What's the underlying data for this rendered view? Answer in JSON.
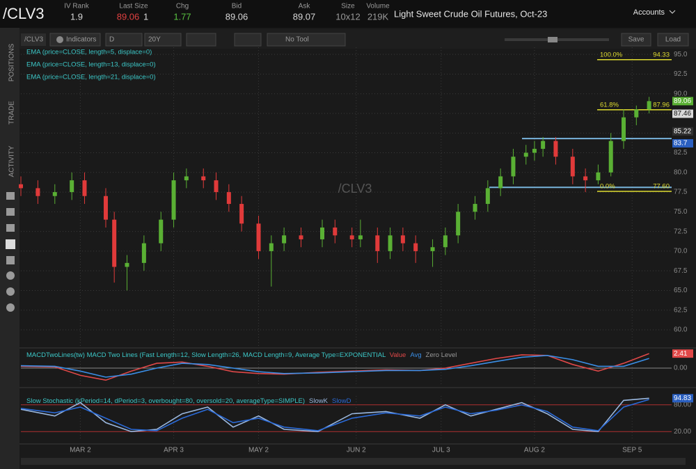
{
  "header": {
    "symbol": "/CLV3",
    "fields": [
      {
        "label": "IV Rank",
        "value": 1.9,
        "color": "#d8d8d8"
      },
      {
        "label": "Last Size",
        "value": 89.06,
        "color": "#e04040",
        "extra": 1
      },
      {
        "label": "Chg",
        "value": 1.77,
        "color": "#58c040"
      },
      {
        "label": "Bid",
        "value": 89.06,
        "color": "#d8d8d8"
      },
      {
        "label": "Ask",
        "value": 89.07,
        "color": "#d8d8d8"
      },
      {
        "label": "Size",
        "value": "10x12",
        "color": "#9a9a9a"
      },
      {
        "label": "Volume",
        "value": "219K",
        "color": "#9a9a9a"
      }
    ],
    "description": "Light Sweet Crude Oil Futures, Oct-23",
    "accounts": "Accounts"
  },
  "toolbar": {
    "symbol": "/CLV3",
    "indicators": "Indicators",
    "aggregation": "D",
    "period": "20Y",
    "tool": "No Tool",
    "save": "Save",
    "load": "Load"
  },
  "sidebar": [
    "POSITIONS",
    "TRADE",
    "ACTIVITY"
  ],
  "chart_data": [
    {
      "type": "candlestick",
      "watermark": "/CLV3",
      "annotations": [
        "EMA (price=CLOSE, length=5, displace=0)",
        "EMA (price=CLOSE, length=13, displace=0)",
        "EMA (price=CLOSE, length=21, displace=0)"
      ],
      "x": [
        0,
        4,
        8,
        12,
        15,
        20,
        22,
        25,
        29,
        33,
        36,
        39,
        43,
        46,
        49,
        52,
        56,
        59,
        62,
        66,
        71,
        74,
        78,
        80,
        84,
        87,
        90,
        93,
        97,
        100,
        103,
        107,
        110,
        113,
        116,
        119,
        121,
        123,
        126,
        130,
        133,
        136,
        139,
        142,
        145,
        148
      ],
      "open": [
        78.5,
        78,
        77,
        77.5,
        79,
        77,
        74,
        68,
        68.5,
        71,
        74,
        79,
        79.5,
        79,
        77.5,
        76,
        73.5,
        70,
        71,
        72,
        71.5,
        73,
        72,
        71.5,
        72,
        70,
        72,
        71,
        70,
        70.5,
        72,
        75,
        76,
        78,
        79.5,
        82,
        82.5,
        83,
        84,
        82,
        79.5,
        79,
        80,
        84,
        87,
        88
      ],
      "high": [
        79.5,
        79,
        78.5,
        80,
        80,
        78,
        75,
        69.5,
        72,
        75,
        80,
        80.5,
        80.5,
        80,
        78.5,
        77,
        74.5,
        72,
        73,
        73,
        74,
        74,
        73,
        74,
        73,
        73,
        73,
        72,
        71.5,
        73,
        76,
        77,
        79,
        80.5,
        83,
        83.5,
        84,
        84.5,
        84.5,
        83,
        80.5,
        81,
        85,
        88,
        88.5,
        89.6
      ],
      "low": [
        77,
        76,
        76,
        76.5,
        76,
        73,
        66,
        65,
        67.5,
        70,
        73,
        78,
        78,
        76.5,
        75,
        72.5,
        69,
        65.5,
        70,
        70.5,
        70.5,
        71,
        70.5,
        70.5,
        68.5,
        69,
        70,
        68.5,
        68,
        69.5,
        71,
        74,
        75,
        77,
        78.5,
        81,
        81.5,
        82,
        81,
        78.5,
        77.5,
        78.5,
        79.5,
        83,
        86,
        87.5
      ],
      "close": [
        78,
        77,
        77.5,
        79,
        77,
        74,
        68,
        68.5,
        71,
        74,
        79,
        79.5,
        79,
        77.5,
        76,
        73.5,
        70,
        71,
        72,
        71.5,
        73,
        72,
        71.5,
        72,
        70,
        72,
        71,
        70,
        70.5,
        72,
        75,
        76,
        78,
        79.5,
        82,
        82.5,
        83,
        84,
        82,
        79.5,
        79,
        80,
        84,
        87,
        88,
        89.06
      ],
      "up_color": "#5ab034",
      "down_color": "#e03a3a",
      "xlim": [
        0,
        152
      ],
      "xticks": [
        {
          "value": 14,
          "label": "MAR 2"
        },
        {
          "value": 36,
          "label": "APR 3"
        },
        {
          "value": 56,
          "label": "MAY 2"
        },
        {
          "value": 79,
          "label": "JUN 2"
        },
        {
          "value": 99,
          "label": "JUL 3"
        },
        {
          "value": 121,
          "label": "AUG 2"
        },
        {
          "value": 144,
          "label": "SEP 5"
        }
      ],
      "ylim": [
        57.7,
        95.9
      ],
      "yticks": [
        {
          "value": 60,
          "label": "60.0"
        },
        {
          "value": 62.5,
          "label": "62.5"
        },
        {
          "value": 65,
          "label": "65.0"
        },
        {
          "value": 67.5,
          "label": "67.5"
        },
        {
          "value": 70,
          "label": "70.0"
        },
        {
          "value": 72.5,
          "label": "72.5"
        },
        {
          "value": 75,
          "label": "75.0"
        },
        {
          "value": 77.5,
          "label": "77.5"
        },
        {
          "value": 80,
          "label": "80.0"
        },
        {
          "value": 82.5,
          "label": "82.5"
        },
        {
          "value": 85,
          "label": "85.0"
        },
        {
          "value": 87.5,
          "label": "87.5"
        },
        {
          "value": 90,
          "label": "90.0"
        },
        {
          "value": 92.5,
          "label": "92.5"
        },
        {
          "value": 95,
          "label": "95.0"
        }
      ],
      "grid": true,
      "fib_levels": [
        {
          "name": "100.0%",
          "value": 94.33,
          "label": "94.33"
        },
        {
          "name": "61.8%",
          "value": 87.96,
          "label": "87.96"
        },
        {
          "name": "0.0%",
          "value": 77.6,
          "label": "77.60"
        }
      ],
      "fib_color": "#e0dc30",
      "levels": [
        84.3,
        78.1
      ],
      "level_color": "#78b4dc",
      "markers": [
        {
          "value": 89.06,
          "label": "89.06",
          "color": "#5ab034"
        },
        {
          "value": 87.46,
          "label": "87.46",
          "color": "#d8d8d8"
        },
        {
          "value": 85.22,
          "label": "85.22",
          "color": "#303030"
        },
        {
          "value": 83.7,
          "label": "83.7",
          "color": "#2a5fc0"
        }
      ]
    },
    {
      "type": "line",
      "title": "MACDTwoLines(tw) MACD Two Lines (Fast Length=12, Slow Length=26, MACD Length=9, Average Type=EXPONENTIAL",
      "extra_legend": "Zero Level",
      "x": [
        0,
        8,
        14,
        20,
        26,
        32,
        38,
        44,
        50,
        56,
        62,
        70,
        78,
        86,
        94,
        100,
        106,
        112,
        118,
        124,
        130,
        136,
        142,
        148
      ],
      "series": [
        {
          "name": "Value",
          "color": "#e04848",
          "values": [
            0.3,
            0.2,
            -1.2,
            -2.0,
            -0.5,
            0.8,
            1.0,
            0.3,
            -0.6,
            -0.9,
            -1.0,
            -0.7,
            -0.5,
            -0.3,
            -0.4,
            0.0,
            0.8,
            1.6,
            2.2,
            2.1,
            0.6,
            -0.5,
            0.8,
            2.41
          ]
        },
        {
          "name": "Avg",
          "color": "#3a8ee6",
          "values": [
            0.4,
            0.3,
            -0.5,
            -1.5,
            -1.0,
            0.0,
            0.8,
            0.6,
            0.0,
            -0.6,
            -0.9,
            -0.8,
            -0.6,
            -0.4,
            -0.4,
            -0.2,
            0.4,
            1.1,
            1.8,
            2.1,
            1.4,
            0.3,
            0.3,
            1.6
          ]
        }
      ],
      "xlim": [
        0,
        152
      ],
      "ylim": [
        -3,
        3
      ],
      "yticks": [
        {
          "value": 0,
          "label": "0.00"
        }
      ],
      "markers": [
        {
          "value": 2.41,
          "label": "2.41",
          "color": "#e04848"
        }
      ]
    },
    {
      "type": "line",
      "title": "Slow Stochastic (kPeriod=14, dPeriod=3, overbought=80, oversold=20, averageType=SIMPLE)",
      "x": [
        0,
        8,
        14,
        20,
        26,
        32,
        38,
        44,
        50,
        56,
        62,
        70,
        78,
        86,
        94,
        100,
        106,
        112,
        118,
        124,
        130,
        136,
        142,
        148
      ],
      "series": [
        {
          "name": "SlowK",
          "color": "#9ab8e0",
          "values": [
            70,
            55,
            85,
            40,
            20,
            25,
            60,
            75,
            30,
            55,
            25,
            20,
            60,
            65,
            50,
            80,
            55,
            70,
            85,
            60,
            25,
            20,
            90,
            94.83
          ]
        },
        {
          "name": "SlowD",
          "color": "#2a6ad8",
          "values": [
            72,
            62,
            75,
            50,
            25,
            22,
            50,
            70,
            40,
            50,
            30,
            22,
            50,
            62,
            55,
            75,
            60,
            68,
            80,
            65,
            30,
            22,
            75,
            92
          ]
        }
      ],
      "xlim": [
        0,
        152
      ],
      "ylim": [
        0,
        100
      ],
      "yticks": [
        {
          "value": 20,
          "label": "20.00"
        },
        {
          "value": 80,
          "label": "80.00"
        }
      ],
      "markers": [
        {
          "value": 94.83,
          "label": "94.83",
          "color": "#2a5fc0"
        }
      ]
    }
  ]
}
